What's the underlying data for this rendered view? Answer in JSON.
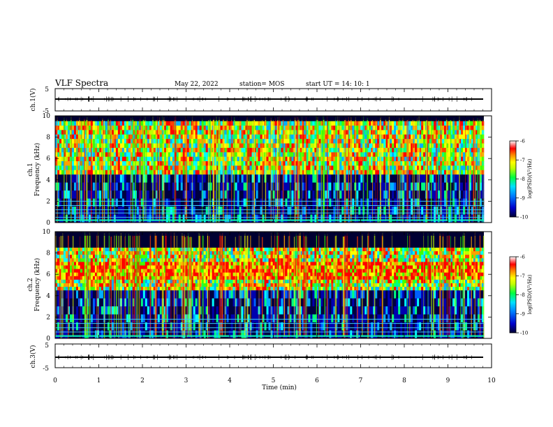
{
  "header": {
    "title": "VLF Spectra",
    "date": "May 22, 2022",
    "station": "station= MOS",
    "start": "start  UT =   14: 10: 1"
  },
  "chart_data": [
    {
      "type": "line",
      "panel": "ch1-waveform",
      "ylabel": "ch.1(V)",
      "ylim": [
        -5,
        5
      ],
      "yticks": [
        "5",
        "-5"
      ],
      "xlim": [
        0,
        10
      ],
      "level": -2
    },
    {
      "type": "heatmap",
      "panel": "ch1-spectrogram",
      "ylabel": "ch.1\nFrequency (kHz)",
      "ylabel_lines": [
        "ch.1",
        "Frequency  (kHz)"
      ],
      "ylim": [
        0,
        10
      ],
      "yticks": [
        "0",
        "2",
        "4",
        "6",
        "8",
        "10"
      ],
      "xlim": [
        0,
        9.85
      ],
      "dominant_band_khz": [
        4.5,
        9.5
      ],
      "lines_khz": [
        0.2,
        0.5,
        0.9,
        1.2,
        1.6,
        2.0
      ],
      "colorbar": {
        "min": -10,
        "max": -6,
        "ticks": [
          "-6",
          "-7",
          "-8",
          "-9",
          "-10"
        ],
        "label": "log(PSD)(V²/Hz)"
      }
    },
    {
      "type": "heatmap",
      "panel": "ch2-spectrogram",
      "ylabel_lines": [
        "ch.2",
        "Frequency  (kHz)"
      ],
      "ylim": [
        0,
        10
      ],
      "yticks": [
        "0",
        "2",
        "4",
        "6",
        "8",
        "10"
      ],
      "xlim": [
        0,
        9.85
      ],
      "dominant_band_khz": [
        4.5,
        8.5
      ],
      "lines_khz": [
        0.2,
        0.6,
        1.0,
        1.4,
        1.8
      ],
      "colorbar": {
        "min": -10,
        "max": -6,
        "ticks": [
          "-6",
          "-7",
          "-8",
          "-9",
          "-10"
        ],
        "label": "log(PSD)(V²/Hz)"
      }
    },
    {
      "type": "line",
      "panel": "ch3-waveform",
      "ylabel": "ch.3(V)",
      "ylim": [
        -5,
        5
      ],
      "yticks": [
        "5",
        "-5"
      ],
      "xlim": [
        0,
        10
      ],
      "level": -2
    }
  ],
  "xaxis": {
    "label": "Time  (min)",
    "ticks": [
      "0",
      "1",
      "2",
      "3",
      "4",
      "5",
      "6",
      "7",
      "8",
      "9",
      "10"
    ],
    "range": [
      0,
      10
    ]
  }
}
